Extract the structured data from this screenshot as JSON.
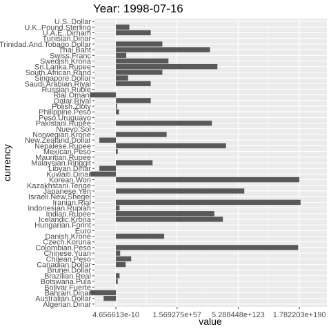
{
  "chart_data": {
    "type": "bar",
    "orientation": "horizontal",
    "title": "Year: 1998-07-16",
    "xlabel": "value",
    "ylabel": "currency",
    "x_tick_labels": [
      "4.656613e-10",
      "1.569275e+57",
      "5.288448e+123",
      "1.782203e+190"
    ],
    "x_tick_values": [
      0,
      1,
      2,
      3
    ],
    "xlim": [
      -0.35,
      3.45
    ],
    "grid": true,
    "panel_background": "#ebebeb",
    "bar_color": "#595959",
    "categories": [
      "U.S..Dollar",
      "U.K..Pound.Sterling",
      "U.A.E..Dirham",
      "Tunisian.Dinar",
      "Trinidad.And.Tobago.Dollar",
      "Thai.Baht",
      "Swiss.Franc",
      "Swedish.Krona",
      "Sri.Lanka.Rupee",
      "South.African.Rand",
      "Singapore.Dollar",
      "Saudi.Arabian.Riyal",
      "Russian.Ruble",
      "Rial.Omani",
      "Qatar.Riyal",
      "Polish.Zloty",
      "Philippine.Peso",
      "Peso.Uruguayo",
      "Pakistani.Rupee",
      "Nuevo.Sol",
      "Norwegian.Krone",
      "New.Zealand.Dollar",
      "Nepalese.Rupee",
      "Mexican.Peso",
      "Mauritian.Rupee",
      "Malaysian.Ringgit",
      "Libyan.Dinar",
      "Kuwaiti.Dinar",
      "Korean.Won",
      "Kazakhstani.Tenge",
      "Japanese.Yen",
      "Israeli.New.Shegel",
      "Iranian.Rial",
      "Indonesian.Rupiah",
      "Indian.Rupee",
      "Icelandic.Krona",
      "Hungarian.Forint",
      "Euro",
      "Danish.Krone",
      "Czech.Koruna",
      "Colombian.Peso",
      "Chinese.Yuan",
      "Chilean.Peso",
      "Canadian.Dollar",
      "Brunei.Dollar",
      "Brazilian.Real",
      "Botswana.Pula",
      "Bolivar.Fuerte",
      "Bahrain.Dinar",
      "Australian.Dollar",
      "Algerian.Dinar"
    ],
    "values": [
      0,
      0.22,
      0.57,
      0,
      0.76,
      1.54,
      0.17,
      0.86,
      1.66,
      0.76,
      0.2,
      0.57,
      0,
      -0.42,
      0.57,
      0.02,
      0.05,
      0,
      1.57,
      0,
      0.83,
      -0.27,
      1.8,
      0.03,
      0,
      0.6,
      -0.27,
      -0.42,
      3.0,
      0,
      2.1,
      0,
      3.02,
      0.06,
      1.61,
      1.75,
      0,
      0,
      0.79,
      0,
      2.98,
      0.07,
      0.25,
      0.16,
      0,
      0.06,
      0.03,
      0,
      -0.42,
      -0.2,
      0
    ]
  }
}
